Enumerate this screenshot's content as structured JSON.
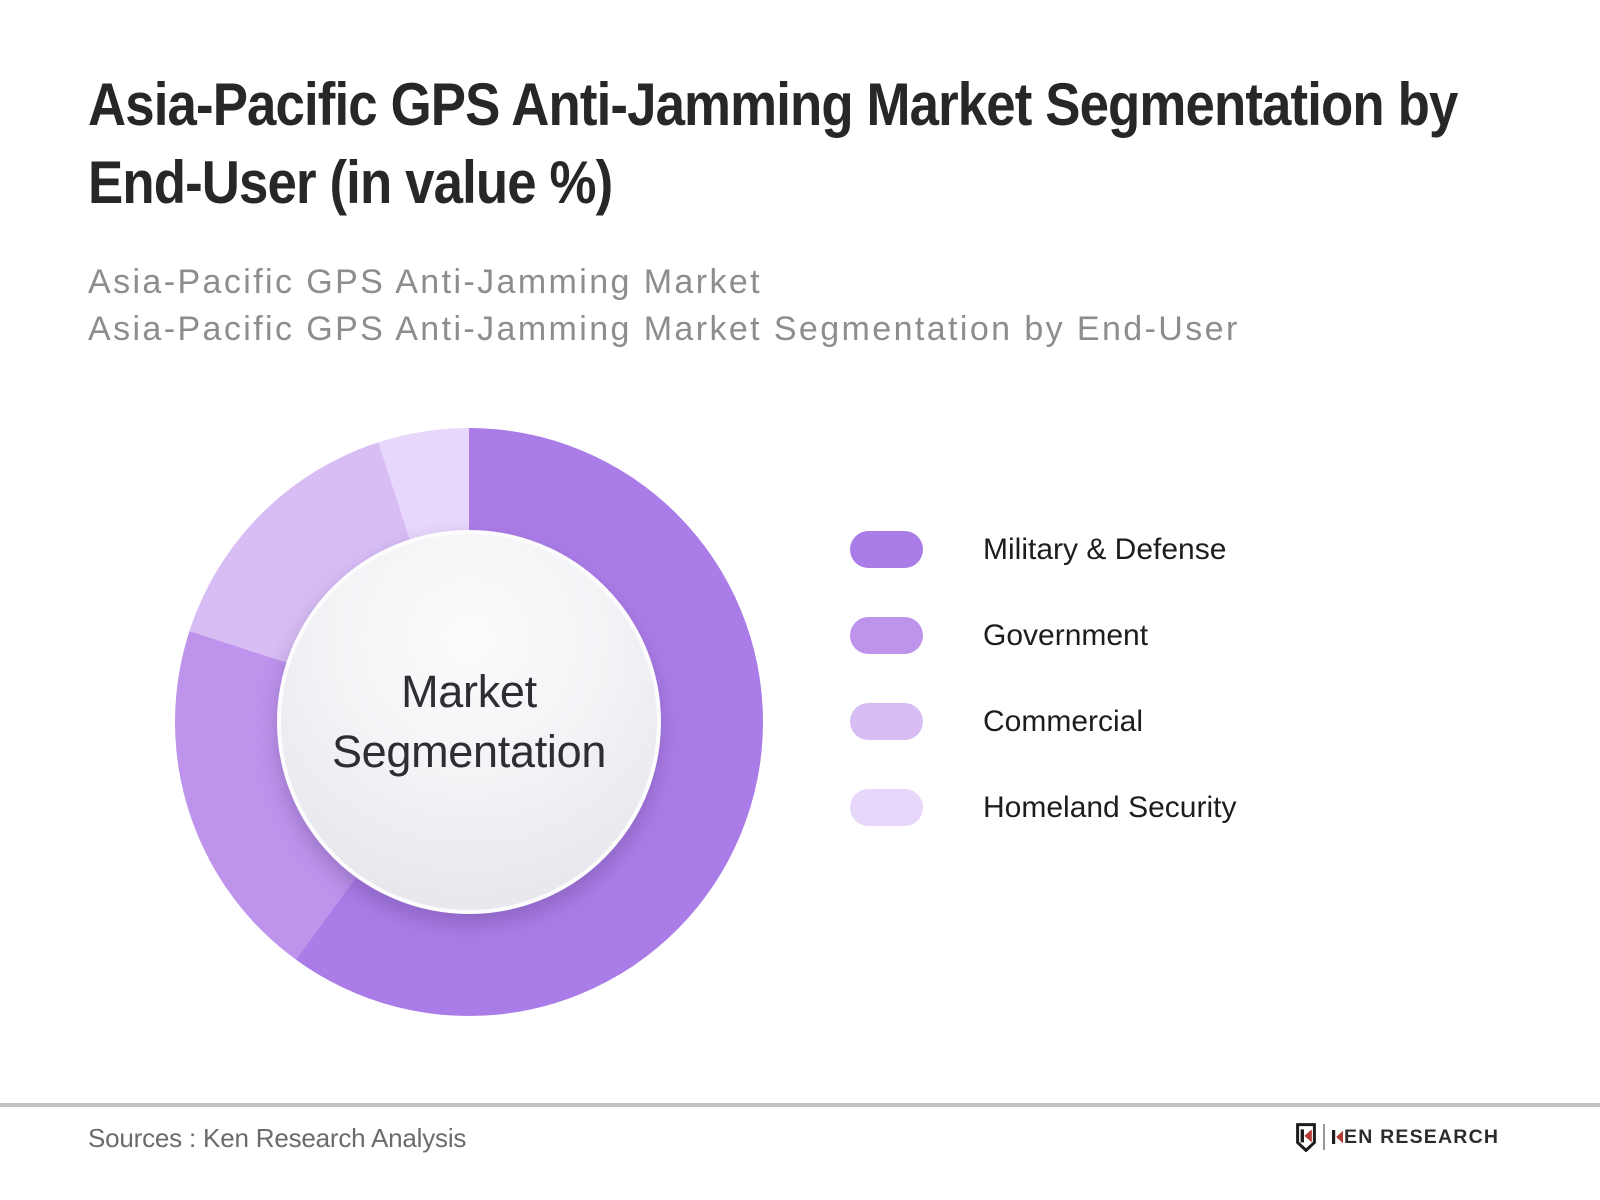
{
  "title": "Asia-Pacific GPS Anti-Jamming Market Segmentation by End-User (in value %)",
  "subtitle_line1": "Asia-Pacific GPS Anti-Jamming Market",
  "subtitle_line2": "Asia-Pacific GPS Anti-Jamming Market Segmentation by End-User",
  "chart_data": {
    "type": "pie",
    "style": "donut",
    "title": "Asia-Pacific GPS Anti-Jamming Market Segmentation by End-User (in value %)",
    "center_label": "Market Segmentation",
    "start_angle_deg": 0,
    "direction": "clockwise",
    "legend_position": "right",
    "segments": [
      {
        "label": "Military & Defense",
        "value_pct": 60,
        "color": "#aa7ce7"
      },
      {
        "label": "Government",
        "value_pct": 20,
        "color": "#bd93ec"
      },
      {
        "label": "Commercial",
        "value_pct": 15,
        "color": "#d7bdf4"
      },
      {
        "label": "Homeland Security",
        "value_pct": 5,
        "color": "#e7d7fa"
      }
    ]
  },
  "footer": {
    "source_text": "Sources : Ken Research Analysis"
  },
  "logo": {
    "brand_initial": "K",
    "brand_remainder": "EN RESEARCH",
    "accent_color": "#b23a31",
    "dark_color": "#1c1c1e"
  }
}
